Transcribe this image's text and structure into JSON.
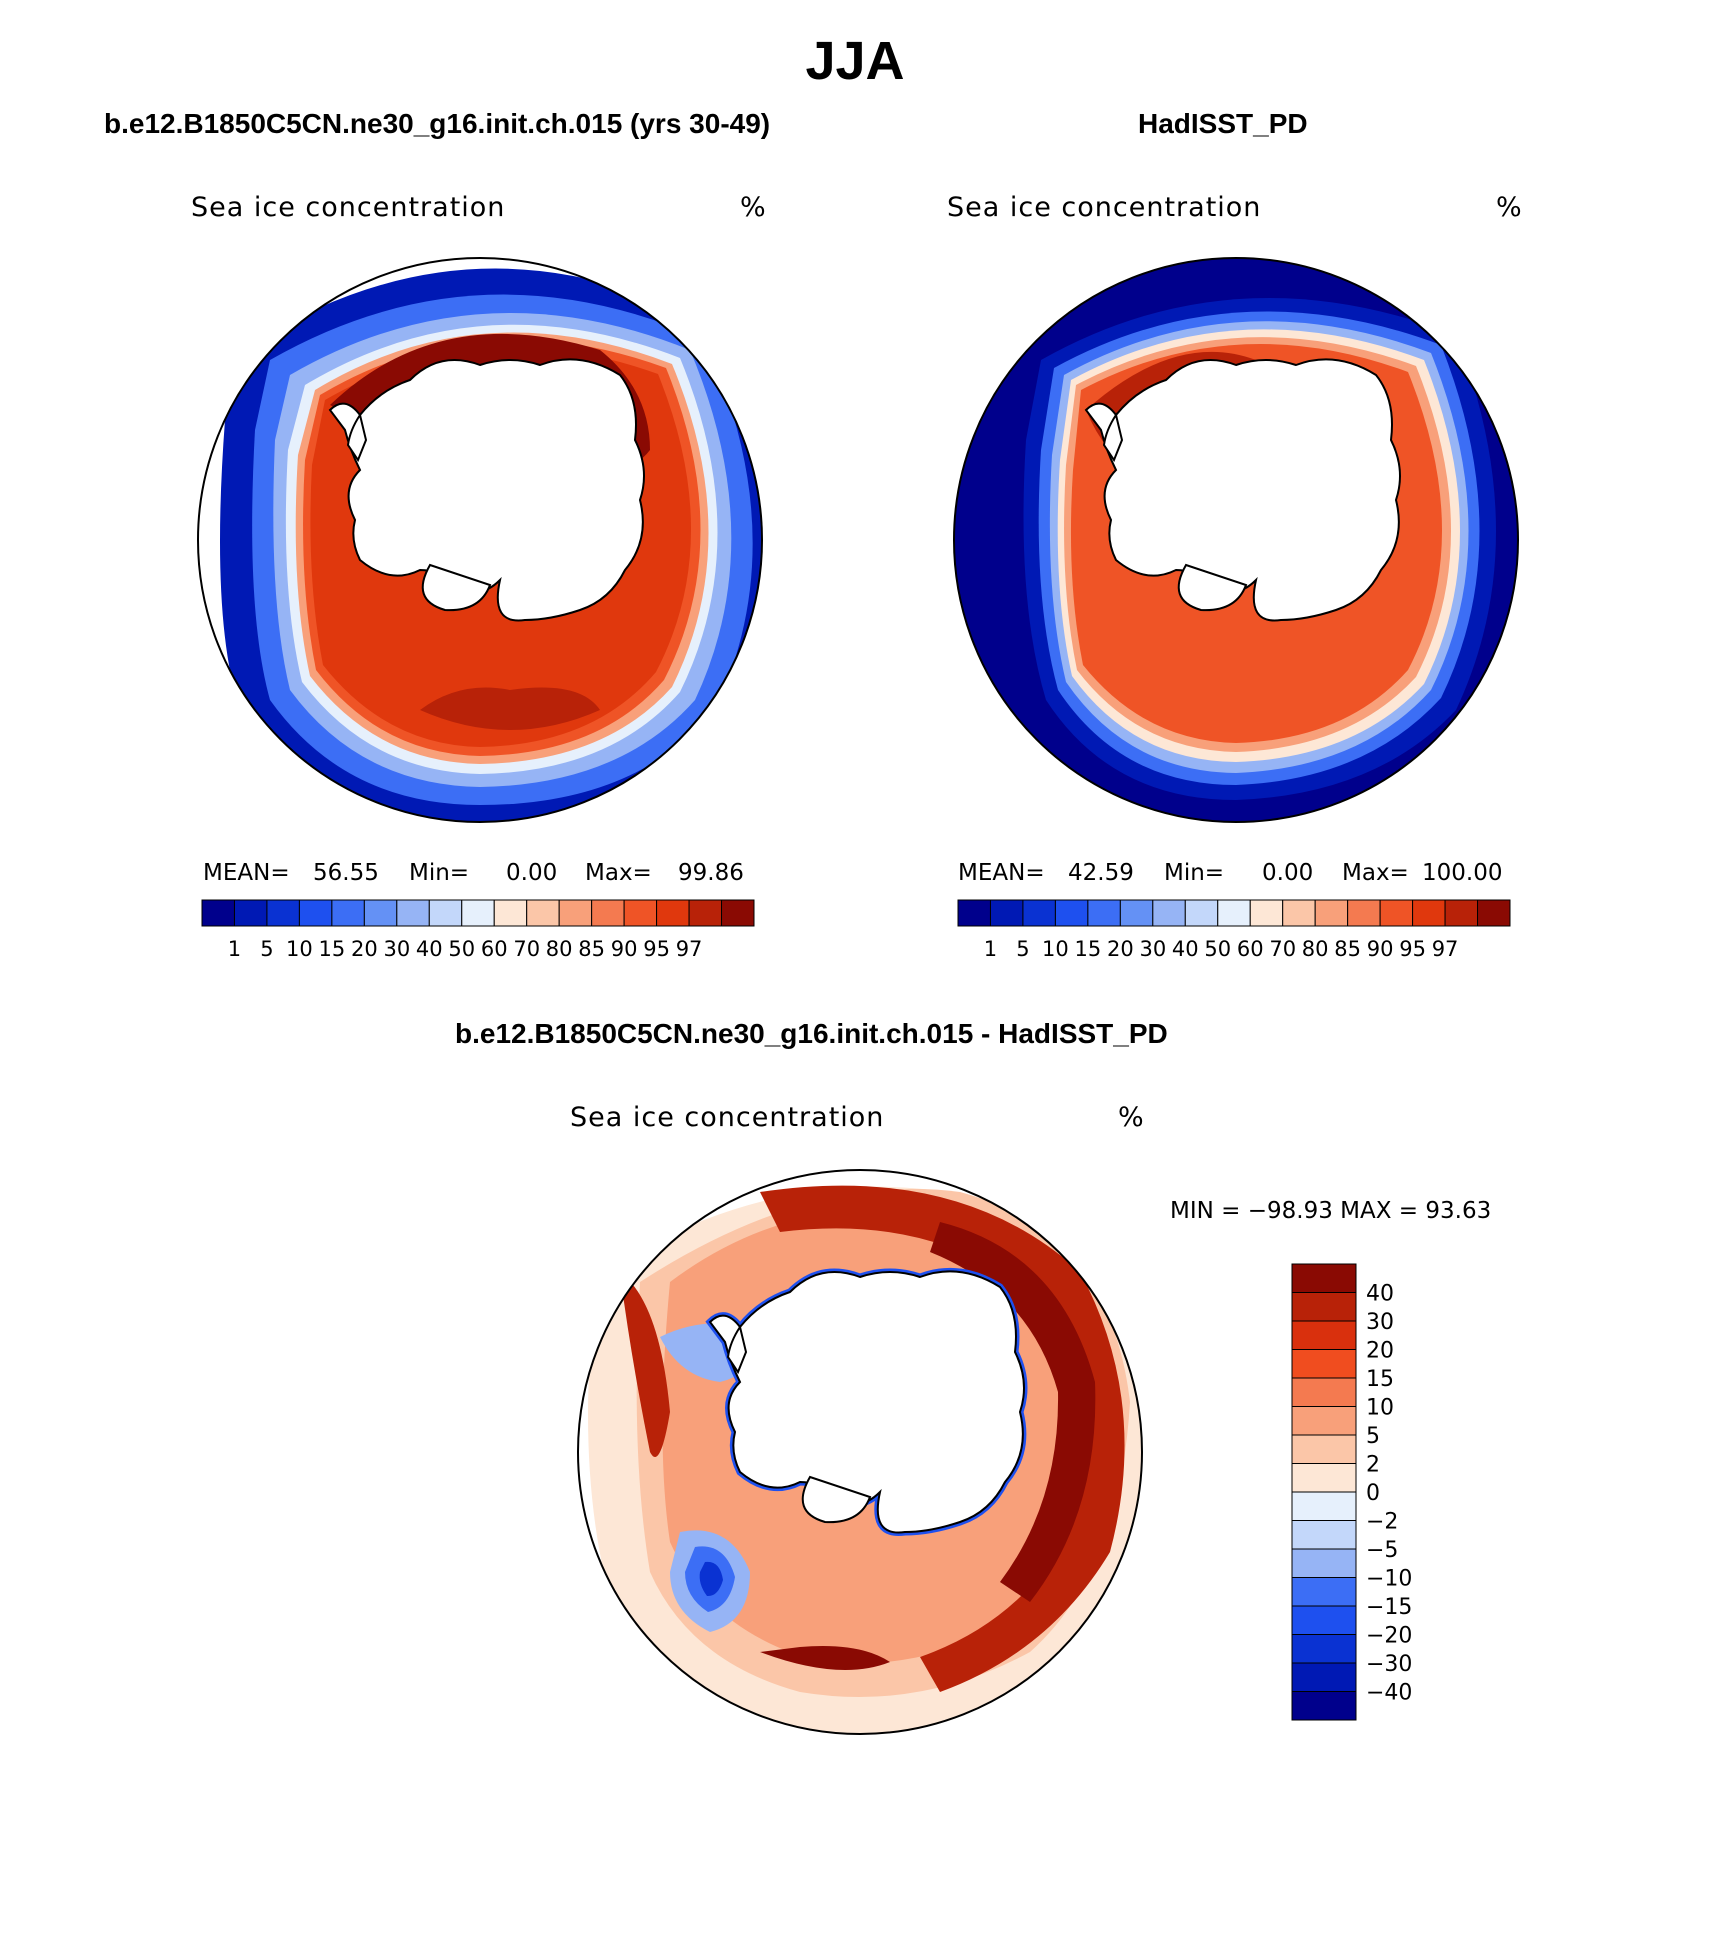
{
  "title": "JJA",
  "panels": [
    {
      "id": "model",
      "title": "b.e12.B1850C5CN.ne30_g16.init.ch.015 (yrs 30-49)",
      "field_label": "Sea ice concentration",
      "units": "%",
      "mean_label": "MEAN=",
      "mean": "56.55",
      "min_label": "Min=",
      "min": "0.00",
      "max_label": "Max=",
      "max": "99.86"
    },
    {
      "id": "obs",
      "title": "HadISST_PD",
      "field_label": "Sea ice concentration",
      "units": "%",
      "mean_label": "MEAN=",
      "mean": "42.59",
      "min_label": "Min=",
      "min": "0.00",
      "max_label": "Max=",
      "max": "100.00"
    }
  ],
  "conc_colorbar": {
    "labels": [
      "1",
      "5",
      "10",
      "15",
      "20",
      "30",
      "40",
      "50",
      "60",
      "70",
      "80",
      "85",
      "90",
      "95",
      "97"
    ],
    "colors": [
      "#00008c",
      "#0019b4",
      "#0a32d2",
      "#1e50ef",
      "#3c6ef5",
      "#6491f5",
      "#96b4f5",
      "#c3d7fa",
      "#e6f0fc",
      "#fde7d6",
      "#fbc6a8",
      "#f8a07a",
      "#f47a50",
      "#ef5426",
      "#e0380d",
      "#b82208",
      "#8a0a03"
    ]
  },
  "diff": {
    "title": "b.e12.B1850C5CN.ne30_g16.init.ch.015 - HadISST_PD",
    "field_label": "Sea ice concentration",
    "units": "%",
    "minmax_text": "MIN = −98.93 MAX =   93.63",
    "colorbar_labels": [
      "40",
      "30",
      "20",
      "15",
      "10",
      "5",
      "2",
      "0",
      "−2",
      "−5",
      "−10",
      "−15",
      "−20",
      "−30",
      "−40"
    ],
    "colorbar_colors": [
      "#8a0a03",
      "#b82208",
      "#d9300d",
      "#f04d1f",
      "#f47a50",
      "#f8a07a",
      "#fbc6a8",
      "#fde7d6",
      "#e6f0fc",
      "#c3d7fa",
      "#96b4f5",
      "#3c6ef5",
      "#1e50ef",
      "#0a32d2",
      "#0019b4",
      "#00008c"
    ]
  }
}
